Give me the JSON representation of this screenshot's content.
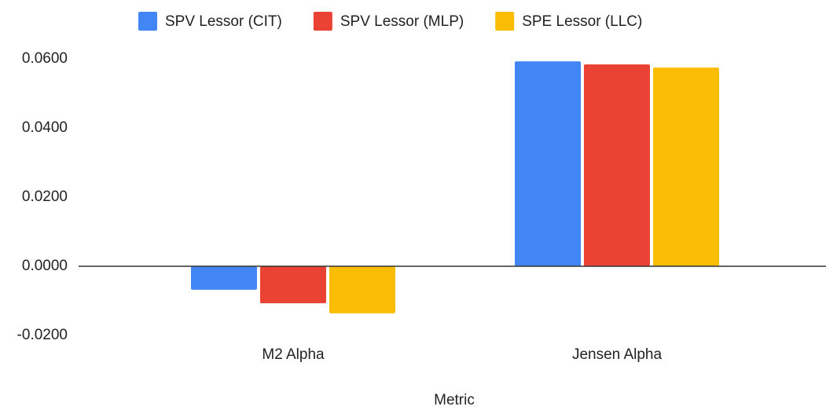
{
  "chart_data": {
    "type": "bar",
    "x_label": "Metric",
    "categories": [
      "M2 Alpha",
      "Jensen Alpha"
    ],
    "series": [
      {
        "name": "SPV Lessor (CIT)",
        "color": "#4285f4",
        "values": [
          -0.0068,
          0.0593
        ]
      },
      {
        "name": "SPV Lessor (MLP)",
        "color": "#ea4335",
        "values": [
          -0.0107,
          0.0584
        ]
      },
      {
        "name": "SPE Lessor (LLC)",
        "color": "#fbbc04",
        "values": [
          -0.0136,
          0.0575
        ]
      }
    ],
    "ylim": [
      -0.02,
      0.06
    ],
    "yticks": [
      {
        "value": -0.02,
        "label": "-0.0200"
      },
      {
        "value": 0,
        "label": "0.0000"
      },
      {
        "value": 0.02,
        "label": "0.0200"
      },
      {
        "value": 0.04,
        "label": "0.0400"
      },
      {
        "value": 0.06,
        "label": "0.0600"
      }
    ],
    "grid": false,
    "legend": "top"
  }
}
